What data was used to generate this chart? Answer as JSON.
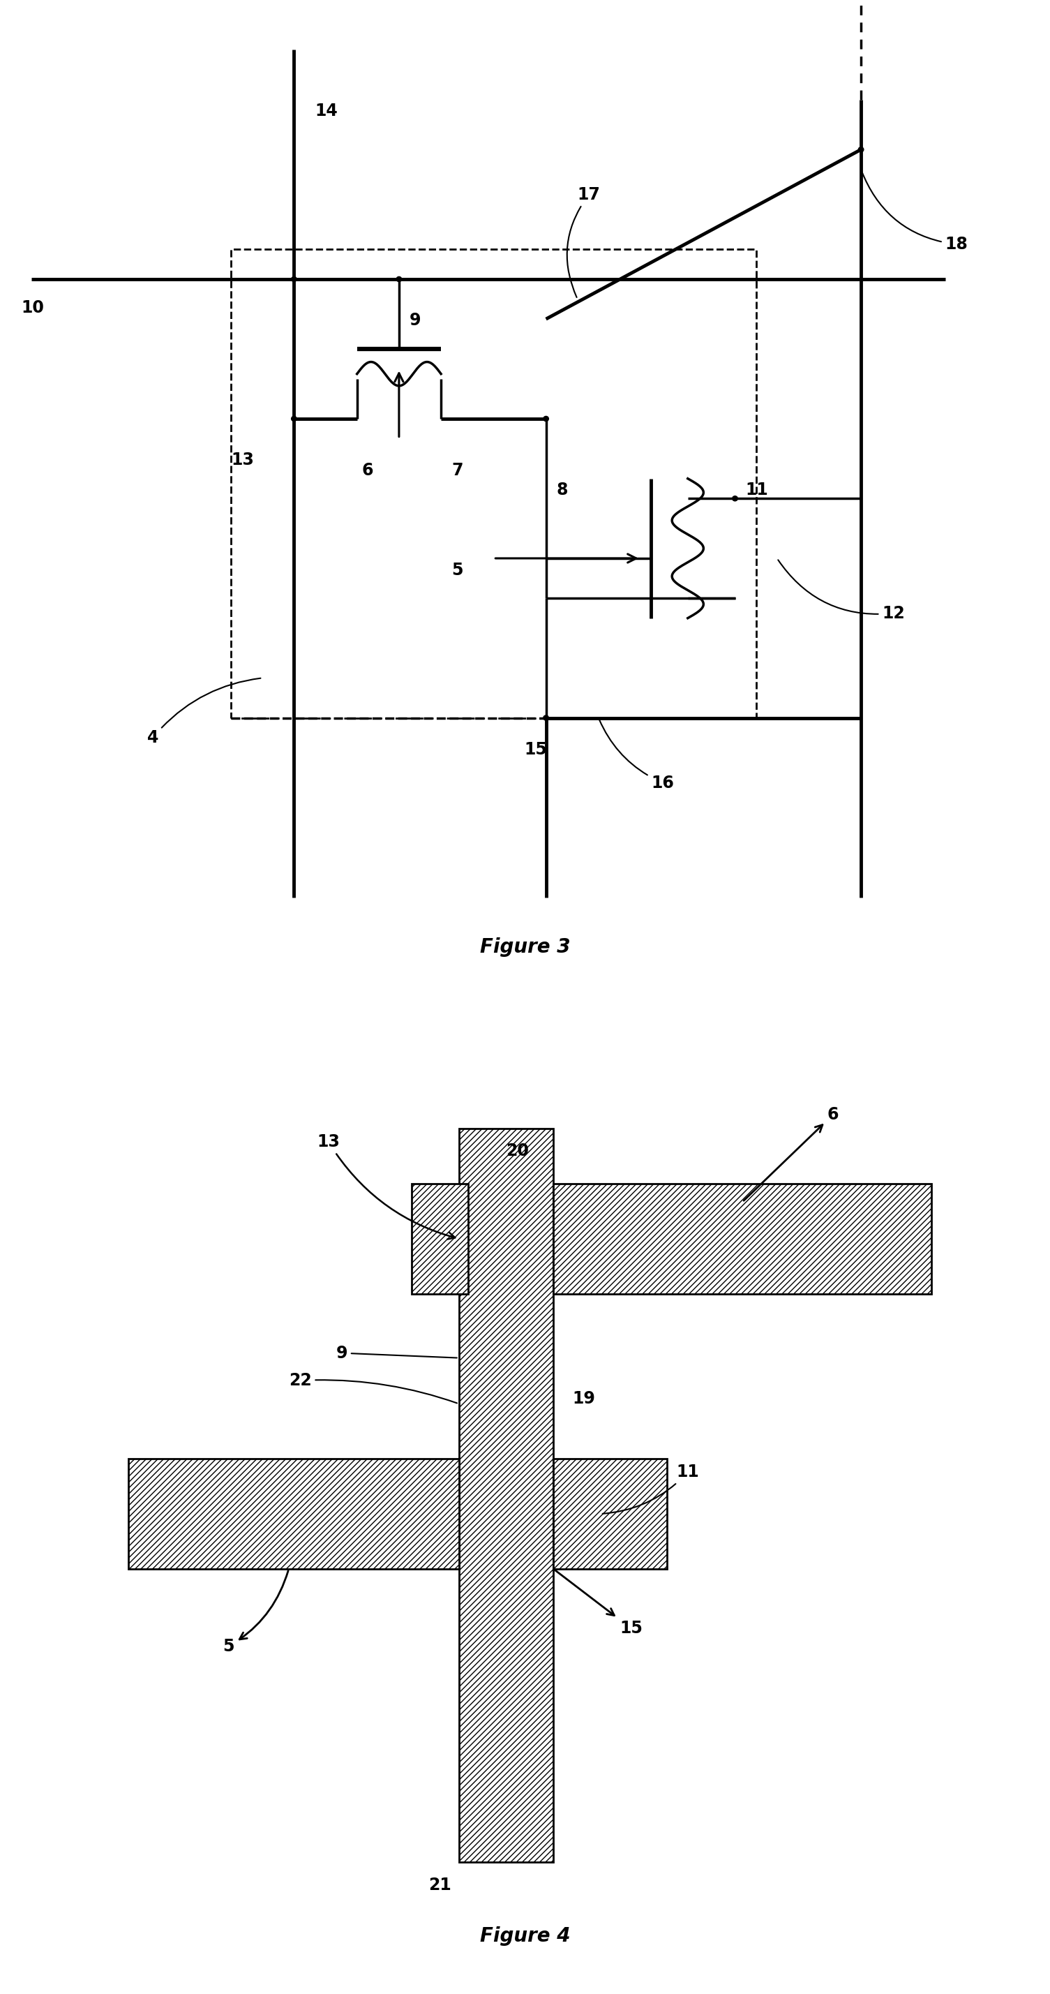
{
  "fig3_title": "Figure 3",
  "fig4_title": "Figure 4",
  "background": "#ffffff",
  "lw": 2.5,
  "lw_thick": 3.5,
  "dot_r": 0.1
}
